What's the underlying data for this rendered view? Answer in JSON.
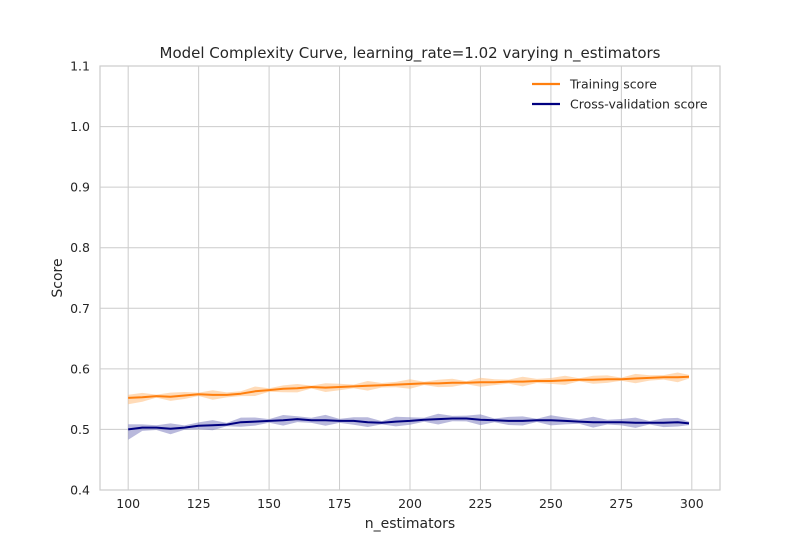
{
  "chart_data": {
    "type": "line",
    "title": "Model Complexity Curve, learning_rate=1.02 varying n_estimators",
    "xlabel": "n_estimators",
    "ylabel": "Score",
    "xlim": [
      90,
      310
    ],
    "ylim": [
      0.4,
      1.1
    ],
    "xticks": [
      100,
      125,
      150,
      175,
      200,
      225,
      250,
      275,
      300
    ],
    "yticks": [
      0.4,
      0.5,
      0.6,
      0.7,
      0.8,
      0.9,
      1.0,
      1.1
    ],
    "xtick_labels": [
      "100",
      "125",
      "150",
      "175",
      "200",
      "225",
      "250",
      "275",
      "300"
    ],
    "ytick_labels": [
      "0.4",
      "0.5",
      "0.6",
      "0.7",
      "0.8",
      "0.9",
      "1.0",
      "1.1"
    ],
    "grid": true,
    "legend_position": "top-right",
    "series": [
      {
        "name": "Training score",
        "color": "#ff7f0e",
        "band_color": "#ffbe7d",
        "x": [
          100,
          105,
          110,
          115,
          120,
          125,
          130,
          135,
          140,
          145,
          150,
          155,
          160,
          165,
          170,
          175,
          180,
          185,
          190,
          195,
          200,
          205,
          210,
          215,
          220,
          225,
          230,
          235,
          240,
          245,
          250,
          255,
          260,
          265,
          270,
          275,
          280,
          285,
          290,
          295,
          299
        ],
        "y": [
          0.552,
          0.553,
          0.555,
          0.554,
          0.556,
          0.558,
          0.557,
          0.557,
          0.559,
          0.563,
          0.565,
          0.567,
          0.568,
          0.57,
          0.569,
          0.57,
          0.571,
          0.572,
          0.573,
          0.574,
          0.575,
          0.576,
          0.576,
          0.577,
          0.577,
          0.578,
          0.578,
          0.579,
          0.579,
          0.58,
          0.58,
          0.581,
          0.582,
          0.582,
          0.583,
          0.583,
          0.584,
          0.585,
          0.586,
          0.586,
          0.587
        ],
        "band": 0.008
      },
      {
        "name": "Cross-validation score",
        "color": "#000080",
        "band_color": "#7f7fbf",
        "x": [
          100,
          105,
          110,
          115,
          120,
          125,
          130,
          135,
          140,
          145,
          150,
          155,
          160,
          165,
          170,
          175,
          180,
          185,
          190,
          195,
          200,
          205,
          210,
          215,
          220,
          225,
          230,
          235,
          240,
          245,
          250,
          255,
          260,
          265,
          270,
          275,
          280,
          285,
          290,
          295,
          299
        ],
        "y": [
          0.5,
          0.503,
          0.503,
          0.501,
          0.503,
          0.506,
          0.507,
          0.508,
          0.512,
          0.513,
          0.514,
          0.515,
          0.517,
          0.515,
          0.515,
          0.514,
          0.514,
          0.512,
          0.511,
          0.513,
          0.514,
          0.516,
          0.517,
          0.518,
          0.518,
          0.516,
          0.515,
          0.514,
          0.514,
          0.515,
          0.515,
          0.514,
          0.513,
          0.512,
          0.512,
          0.512,
          0.511,
          0.511,
          0.511,
          0.512,
          0.51
        ],
        "band": 0.009
      }
    ]
  }
}
